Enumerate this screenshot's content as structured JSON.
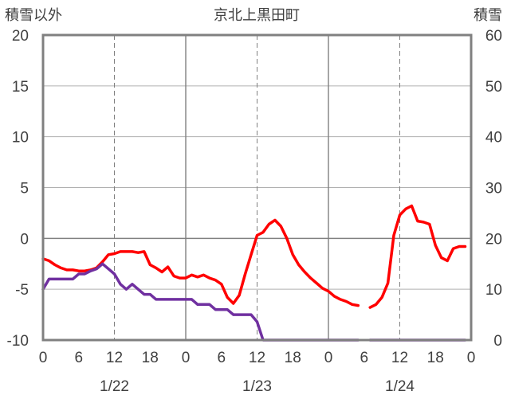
{
  "chart_data": {
    "type": "line",
    "title": "京北上黒田町",
    "left_axis_label": "積雪以外",
    "right_axis_label": "積雪",
    "left_ylim": [
      -10,
      20
    ],
    "left_yticks": [
      20,
      15,
      10,
      5,
      0,
      -5,
      -10
    ],
    "right_ylim": [
      0,
      60
    ],
    "right_yticks": [
      60,
      50,
      40,
      30,
      20,
      10,
      0
    ],
    "xlim_hours": [
      0,
      72
    ],
    "x_tick_hours": [
      0,
      6,
      12,
      18,
      24,
      30,
      36,
      42,
      48,
      54,
      60,
      66,
      72
    ],
    "x_tick_labels": [
      "0",
      "6",
      "12",
      "18",
      "0",
      "6",
      "12",
      "18",
      "0",
      "6",
      "12",
      "18",
      "0"
    ],
    "date_labels": [
      {
        "label": "1/22",
        "hour": 12
      },
      {
        "label": "1/23",
        "hour": 36
      },
      {
        "label": "1/24",
        "hour": 60
      }
    ],
    "grid": {
      "major_every_hours": 24,
      "minor_every_hours": 12,
      "y_every": 5
    },
    "series": [
      {
        "color": "#ff0000",
        "axis": "left",
        "segments": [
          [
            [
              0,
              -2
            ],
            [
              1,
              -2.2
            ],
            [
              2,
              -2.6
            ],
            [
              3,
              -2.9
            ],
            [
              4,
              -3.1
            ],
            [
              5,
              -3.1
            ],
            [
              6,
              -3.2
            ],
            [
              7,
              -3.2
            ],
            [
              8,
              -3.1
            ],
            [
              9,
              -2.9
            ],
            [
              10,
              -2.3
            ],
            [
              11,
              -1.6
            ],
            [
              12,
              -1.5
            ],
            [
              13,
              -1.3
            ],
            [
              14,
              -1.3
            ],
            [
              15,
              -1.3
            ],
            [
              16,
              -1.4
            ],
            [
              17,
              -1.3
            ],
            [
              18,
              -2.6
            ],
            [
              19,
              -2.9
            ],
            [
              20,
              -3.3
            ],
            [
              21,
              -2.8
            ],
            [
              22,
              -3.7
            ],
            [
              23,
              -3.9
            ],
            [
              24,
              -3.9
            ],
            [
              25,
              -3.6
            ],
            [
              26,
              -3.8
            ],
            [
              27,
              -3.6
            ],
            [
              28,
              -3.9
            ],
            [
              29,
              -4.1
            ],
            [
              30,
              -4.5
            ],
            [
              31,
              -5.8
            ],
            [
              32,
              -6.4
            ],
            [
              33,
              -5.6
            ],
            [
              34,
              -3.5
            ],
            [
              35,
              -1.6
            ],
            [
              36,
              0.3
            ],
            [
              37,
              0.6
            ],
            [
              38,
              1.4
            ],
            [
              39,
              1.8
            ],
            [
              40,
              1.2
            ],
            [
              41,
              0
            ],
            [
              42,
              -1.6
            ],
            [
              43,
              -2.6
            ],
            [
              44,
              -3.3
            ],
            [
              45,
              -3.9
            ],
            [
              46,
              -4.4
            ],
            [
              47,
              -4.9
            ],
            [
              48,
              -5.2
            ],
            [
              49,
              -5.7
            ],
            [
              50,
              -6.0
            ],
            [
              51,
              -6.2
            ],
            [
              52,
              -6.5
            ],
            [
              53,
              -6.6
            ]
          ],
          [
            [
              55,
              -6.8
            ],
            [
              56,
              -6.5
            ],
            [
              57,
              -5.8
            ],
            [
              58,
              -4.4
            ],
            [
              59,
              0.3
            ],
            [
              60,
              2.3
            ],
            [
              61,
              2.9
            ],
            [
              62,
              3.2
            ],
            [
              63,
              1.7
            ],
            [
              64,
              1.6
            ],
            [
              65,
              1.4
            ],
            [
              66,
              -0.7
            ],
            [
              67,
              -1.9
            ],
            [
              68,
              -2.2
            ],
            [
              69,
              -1.0
            ],
            [
              70,
              -0.8
            ],
            [
              71,
              -0.8
            ]
          ]
        ]
      },
      {
        "color": "#7030a0",
        "axis": "left",
        "segments": [
          [
            [
              0,
              -5
            ],
            [
              1,
              -4
            ],
            [
              2,
              -4
            ],
            [
              3,
              -4
            ],
            [
              4,
              -4
            ],
            [
              5,
              -4
            ],
            [
              6,
              -3.5
            ],
            [
              7,
              -3.5
            ],
            [
              8,
              -3.2
            ],
            [
              9,
              -3.0
            ],
            [
              10,
              -2.5
            ],
            [
              11,
              -3.0
            ],
            [
              12,
              -3.5
            ],
            [
              13,
              -4.5
            ],
            [
              14,
              -5.0
            ],
            [
              15,
              -4.5
            ],
            [
              16,
              -5.0
            ],
            [
              17,
              -5.5
            ],
            [
              18,
              -5.5
            ],
            [
              19,
              -6.0
            ],
            [
              20,
              -6.0
            ],
            [
              21,
              -6.0
            ],
            [
              22,
              -6.0
            ],
            [
              23,
              -6.0
            ],
            [
              24,
              -6.0
            ],
            [
              25,
              -6.0
            ],
            [
              26,
              -6.5
            ],
            [
              27,
              -6.5
            ],
            [
              28,
              -6.5
            ],
            [
              29,
              -7.0
            ],
            [
              30,
              -7.0
            ],
            [
              31,
              -7.0
            ],
            [
              32,
              -7.5
            ],
            [
              33,
              -7.5
            ],
            [
              34,
              -7.5
            ],
            [
              35,
              -7.5
            ],
            [
              36,
              -8.2
            ],
            [
              37,
              -10
            ],
            [
              38,
              -10
            ],
            [
              39,
              -10
            ],
            [
              40,
              -10
            ],
            [
              41,
              -10
            ],
            [
              42,
              -10
            ],
            [
              43,
              -10
            ],
            [
              44,
              -10
            ],
            [
              45,
              -10
            ],
            [
              46,
              -10
            ],
            [
              47,
              -10
            ],
            [
              48,
              -10
            ],
            [
              49,
              -10
            ],
            [
              50,
              -10
            ],
            [
              51,
              -10
            ],
            [
              52,
              -10
            ],
            [
              53,
              -10
            ]
          ],
          [
            [
              55,
              -10
            ],
            [
              56,
              -10
            ],
            [
              57,
              -10
            ],
            [
              58,
              -10
            ],
            [
              59,
              -10
            ],
            [
              60,
              -10
            ],
            [
              61,
              -10
            ],
            [
              62,
              -10
            ],
            [
              63,
              -10
            ],
            [
              64,
              -10
            ],
            [
              65,
              -10
            ],
            [
              66,
              -10
            ],
            [
              67,
              -10
            ],
            [
              68,
              -10
            ],
            [
              69,
              -10
            ],
            [
              70,
              -10
            ],
            [
              71,
              -10
            ]
          ]
        ]
      }
    ]
  }
}
